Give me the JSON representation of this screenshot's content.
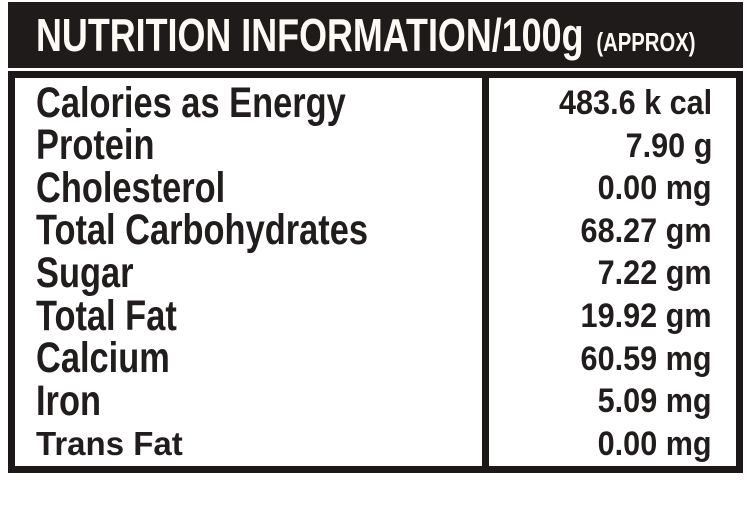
{
  "header": {
    "title": "NUTRITION INFORMATION/100g",
    "approx": "(APPROX)"
  },
  "rows": [
    {
      "label": "Calories as Energy",
      "value": "483.6 k cal"
    },
    {
      "label": "Protein",
      "value": "7.90 g"
    },
    {
      "label": "Cholesterol",
      "value": "0.00 mg"
    },
    {
      "label": "Total Carbohydrates",
      "value": "68.27 gm"
    },
    {
      "label": "Sugar",
      "value": "7.22 gm"
    },
    {
      "label": "Total Fat",
      "value": "19.92 gm"
    },
    {
      "label": "Calcium",
      "value": "60.59 mg"
    },
    {
      "label": "Iron",
      "value": "5.09 mg"
    },
    {
      "label": "Trans Fat",
      "value": "0.00 mg"
    }
  ],
  "colors": {
    "bar_background": "#201b1b",
    "header_text": "#fdfaf6",
    "body_text": "#221d1d",
    "border": "#1c1818",
    "page_background": "#ffffff"
  }
}
